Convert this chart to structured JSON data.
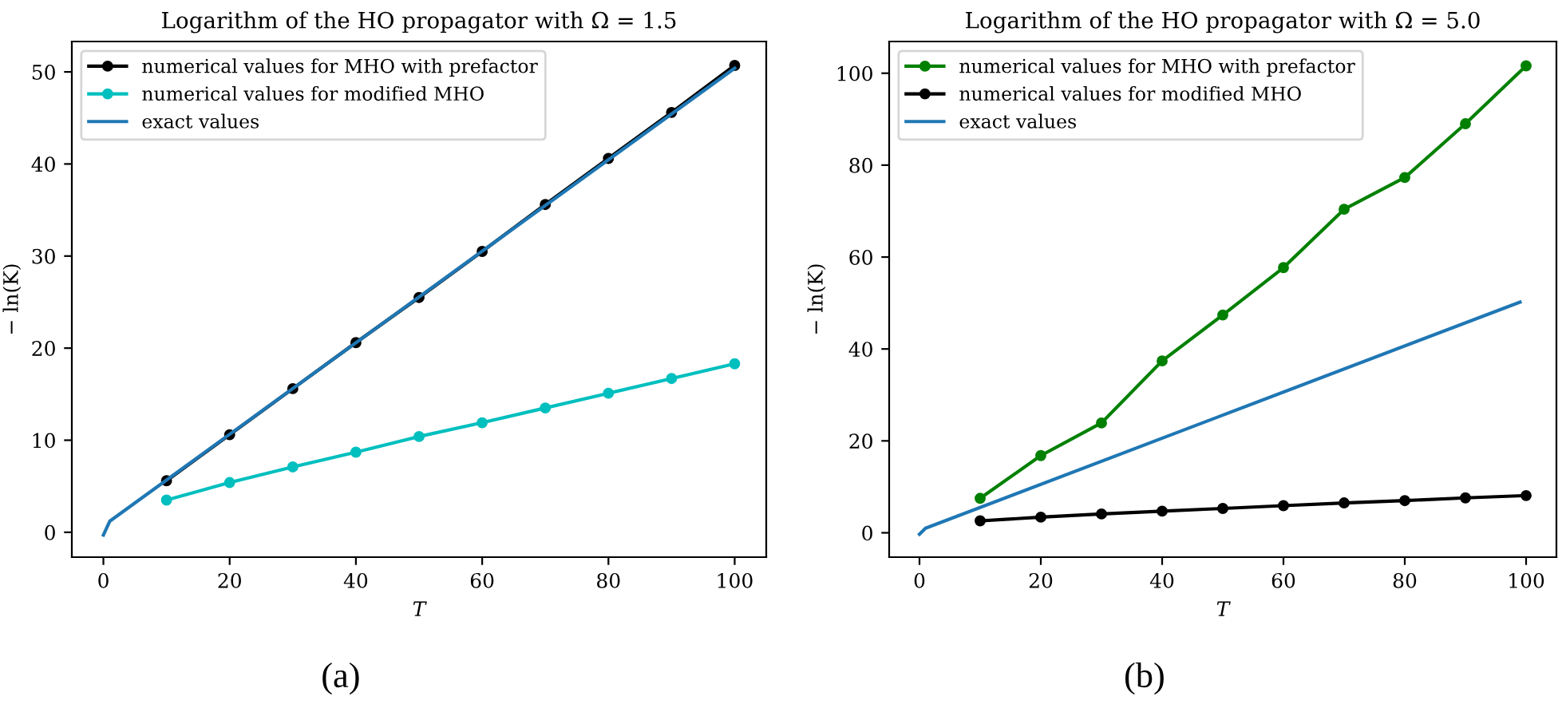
{
  "chart_data": [
    {
      "type": "line",
      "title": "Logarithm of the HO propagator with Ω = 1.5",
      "xlabel": "T",
      "ylabel": "− ln(K)",
      "xlim": [
        -5,
        105
      ],
      "ylim": [
        -2.7,
        53.3
      ],
      "xticks": [
        0,
        20,
        40,
        60,
        80,
        100
      ],
      "yticks": [
        0,
        10,
        20,
        30,
        40,
        50
      ],
      "grid": false,
      "legend": "top left",
      "annotations": [
        "(a)"
      ],
      "series": [
        {
          "name": "numerical values for MHO with prefactor",
          "color": "#000000",
          "marker": "circle",
          "x": [
            10,
            20,
            30,
            40,
            50,
            60,
            70,
            80,
            90,
            100
          ],
          "values": [
            5.6,
            10.6,
            15.6,
            20.6,
            25.5,
            30.5,
            35.6,
            40.6,
            45.6,
            50.7
          ]
        },
        {
          "name": "numerical values for modified MHO",
          "color": "#00bfbf",
          "marker": "circle",
          "x": [
            10,
            20,
            30,
            40,
            50,
            60,
            70,
            80,
            90,
            100
          ],
          "values": [
            3.5,
            5.4,
            7.1,
            8.7,
            10.4,
            11.9,
            13.5,
            15.1,
            16.7,
            18.3
          ]
        },
        {
          "name": "exact values",
          "color": "#1f77b4",
          "marker": "none",
          "x": [
            0,
            1,
            100
          ],
          "values": [
            -0.3,
            1.2,
            50.4
          ]
        }
      ]
    },
    {
      "type": "line",
      "title": "Logarithm of the HO propagator with Ω = 5.0",
      "xlabel": "T",
      "ylabel": "− ln(K)",
      "xlim": [
        -5,
        105
      ],
      "ylim": [
        -5.3,
        106.9
      ],
      "xticks": [
        0,
        20,
        40,
        60,
        80,
        100
      ],
      "yticks": [
        0,
        20,
        40,
        60,
        80,
        100
      ],
      "grid": false,
      "legend": "top left",
      "annotations": [
        "(b)"
      ],
      "series": [
        {
          "name": "numerical values for MHO with prefactor",
          "color": "#008000",
          "marker": "circle",
          "x": [
            10,
            20,
            30,
            40,
            50,
            60,
            70,
            80,
            90,
            100
          ],
          "values": [
            7.5,
            16.8,
            23.9,
            37.4,
            47.4,
            57.7,
            70.4,
            77.3,
            89.0,
            101.6
          ]
        },
        {
          "name": "numerical values for modified MHO",
          "color": "#000000",
          "marker": "circle",
          "x": [
            10,
            20,
            30,
            40,
            50,
            60,
            70,
            80,
            90,
            100
          ],
          "values": [
            2.6,
            3.4,
            4.1,
            4.7,
            5.3,
            5.9,
            6.5,
            7.0,
            7.6,
            8.1
          ]
        },
        {
          "name": "exact values",
          "color": "#1f77b4",
          "marker": "none",
          "x": [
            0,
            1,
            99
          ],
          "values": [
            -0.3,
            1.0,
            50.2
          ]
        }
      ]
    }
  ]
}
